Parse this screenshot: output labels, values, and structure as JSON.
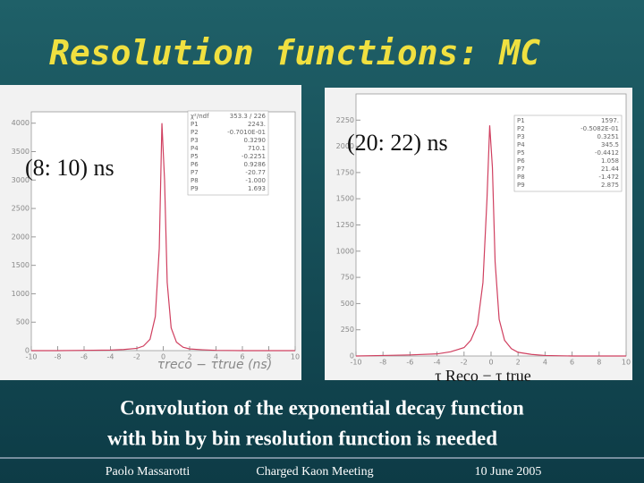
{
  "title": "Resolution functions: MC",
  "caption": [
    "Convolution of the exponential decay function",
    "with bin by bin resolution function is needed"
  ],
  "footer": {
    "author": "Paolo Massarotti",
    "event": "Charged Kaon Meeting",
    "date": "10 June 2005"
  },
  "chart_data": [
    {
      "type": "line",
      "annotation": "(8: 10) ns",
      "x_label": "τreco − τtrue (ns)",
      "stats": [
        [
          "χ²/ndf",
          "353.3 / 226"
        ],
        [
          "P1",
          "2243."
        ],
        [
          "P2",
          "-0.7010E-01"
        ],
        [
          "P3",
          "0.3290"
        ],
        [
          "P4",
          "710.1"
        ],
        [
          "P5",
          "-0.2251"
        ],
        [
          "P6",
          "0.9286"
        ],
        [
          "P7",
          "-20.77"
        ],
        [
          "P8",
          "-1.000"
        ],
        [
          "P9",
          "1.693"
        ]
      ],
      "x": [
        -10,
        -8,
        -6,
        -4,
        -3,
        -2,
        -1.5,
        -1,
        -0.6,
        -0.3,
        -0.1,
        0.1,
        0.3,
        0.6,
        1,
        1.5,
        2,
        3,
        4,
        6,
        8,
        10
      ],
      "series": [
        {
          "name": "MC",
          "color": "#d04060",
          "values": [
            0,
            0,
            5,
            10,
            20,
            40,
            80,
            200,
            600,
            1800,
            4000,
            3000,
            1200,
            400,
            150,
            60,
            30,
            15,
            5,
            0,
            0,
            0
          ]
        }
      ],
      "xlim": [
        -10,
        10
      ],
      "xticks": [
        -10,
        -8,
        -6,
        -4,
        -2,
        0,
        2,
        4,
        6,
        8,
        10
      ],
      "ylim": [
        0,
        4200
      ],
      "yticks": [
        0,
        500,
        1000,
        1500,
        2000,
        2500,
        3000,
        3500,
        4000
      ]
    },
    {
      "type": "line",
      "annotation": "(20: 22) ns",
      "x_label": "τ Reco − τ true",
      "stats": [
        [
          "P1",
          "1597."
        ],
        [
          "P2",
          "-0.5082E-01"
        ],
        [
          "P3",
          "0.3251"
        ],
        [
          "P4",
          "345.5"
        ],
        [
          "P5",
          "-0.4412"
        ],
        [
          "P6",
          "1.058"
        ],
        [
          "P7",
          "21.44"
        ],
        [
          "P8",
          "-1.472"
        ],
        [
          "P9",
          "2.875"
        ]
      ],
      "x": [
        -10,
        -8,
        -6,
        -4,
        -3,
        -2,
        -1.5,
        -1,
        -0.6,
        -0.3,
        -0.1,
        0.1,
        0.3,
        0.6,
        1,
        1.5,
        2,
        3,
        4,
        6,
        8,
        10
      ],
      "series": [
        {
          "name": "MC",
          "color": "#d04060",
          "values": [
            0,
            5,
            10,
            20,
            40,
            80,
            150,
            300,
            700,
            1500,
            2200,
            1800,
            900,
            350,
            150,
            70,
            35,
            15,
            5,
            0,
            0,
            0
          ]
        }
      ],
      "xlim": [
        -10,
        10
      ],
      "xticks": [
        -10,
        -8,
        -6,
        -4,
        -2,
        0,
        2,
        4,
        6,
        8,
        10
      ],
      "ylim": [
        0,
        2500
      ],
      "yticks": [
        0,
        250,
        500,
        750,
        1000,
        1250,
        1500,
        1750,
        2000,
        2250
      ]
    }
  ]
}
